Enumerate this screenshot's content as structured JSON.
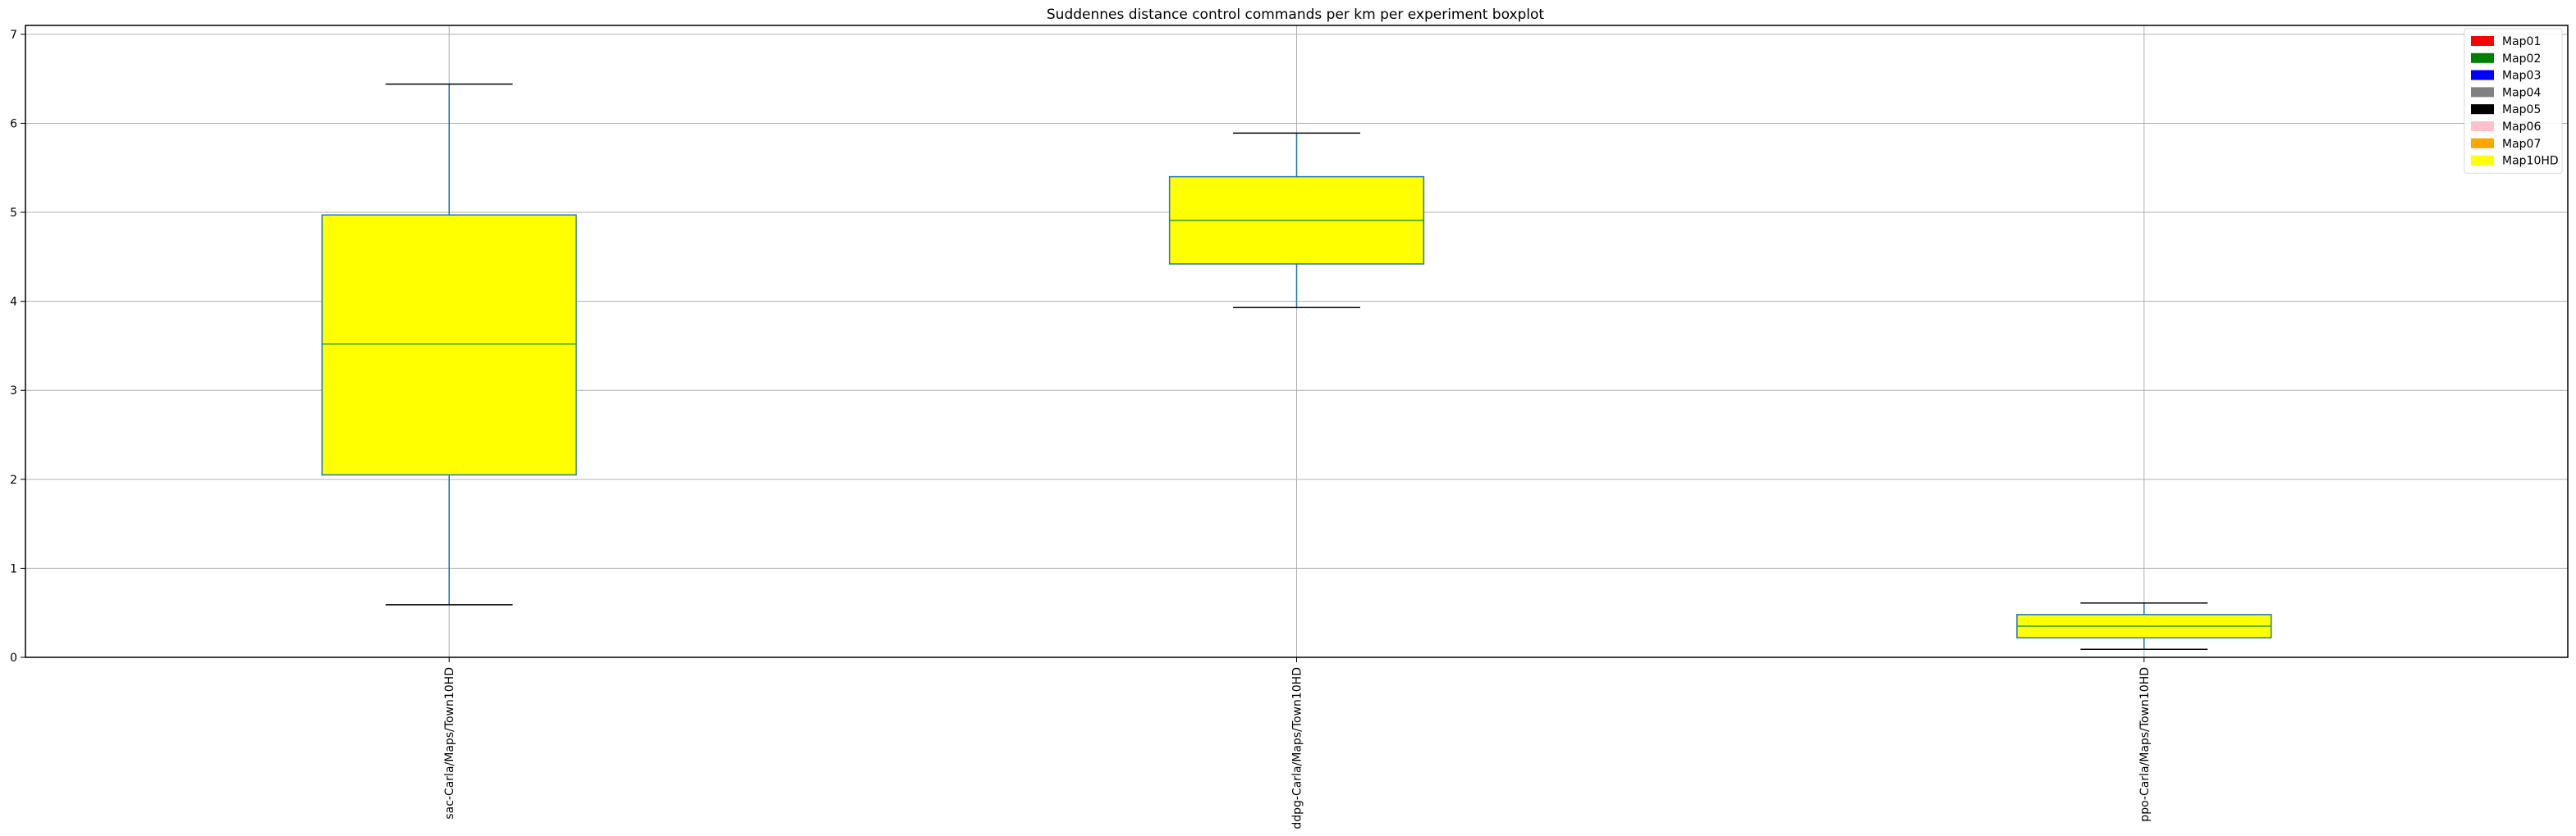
{
  "chart_data": {
    "type": "boxplot",
    "title": "Suddennes distance control commands per km per experiment boxplot",
    "xlabel": "",
    "ylabel": "",
    "ylim": [
      0,
      7.1
    ],
    "yticks": [
      0,
      1,
      2,
      3,
      4,
      5,
      6,
      7
    ],
    "grid": true,
    "categories": [
      "sac-Carla/Maps/Town10HD",
      "ddpg-Carla/Maps/Town10HD",
      "ppo-Carla/Maps/Town10HD"
    ],
    "boxes": [
      {
        "category": "sac-Carla/Maps/Town10HD",
        "whisker_low": 0.59,
        "q1": 2.05,
        "median": 3.52,
        "q3": 4.97,
        "whisker_high": 6.44,
        "color": "#ffff00"
      },
      {
        "category": "ddpg-Carla/Maps/Town10HD",
        "whisker_low": 3.93,
        "q1": 4.42,
        "median": 4.91,
        "q3": 5.4,
        "whisker_high": 5.89,
        "color": "#ffff00"
      },
      {
        "category": "ppo-Carla/Maps/Town10HD",
        "whisker_low": 0.09,
        "q1": 0.22,
        "median": 0.35,
        "q3": 0.48,
        "whisker_high": 0.61,
        "color": "#ffff00"
      }
    ],
    "legend": {
      "placement": "top-right",
      "entries": [
        {
          "label": "Map01",
          "color": "#ff0000"
        },
        {
          "label": "Map02",
          "color": "#008000"
        },
        {
          "label": "Map03",
          "color": "#0000ff"
        },
        {
          "label": "Map04",
          "color": "#808080"
        },
        {
          "label": "Map05",
          "color": "#000000"
        },
        {
          "label": "Map06",
          "color": "#ffc0cb"
        },
        {
          "label": "Map07",
          "color": "#ffa500"
        },
        {
          "label": "Map10HD",
          "color": "#ffff00"
        }
      ]
    },
    "colors": {
      "box_edge": "#1f77b4",
      "median": "#2ca02c",
      "whisker": "#1f77b4",
      "cap": "#000000",
      "grid": "#b0b0b0"
    }
  }
}
